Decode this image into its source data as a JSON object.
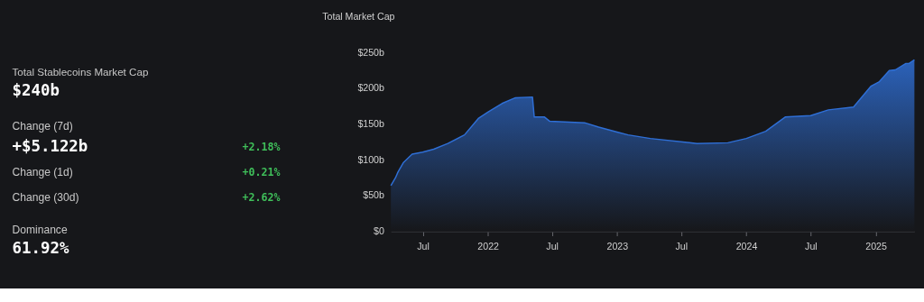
{
  "chart_data": [
    {
      "type": "other",
      "title": "Total Stablecoins Market Cap",
      "annotations": [
        "$240b",
        "Change (7d)",
        "+$5.122b",
        "+2.18%",
        "Change (1d)",
        "+0.21%",
        "Change (30d)",
        "+2.62%",
        "Dominance",
        "61.92%"
      ]
    },
    {
      "type": "area",
      "title": "Total Market Cap",
      "x": [
        "2021-04-02",
        "2021-04-15",
        "2021-04-22",
        "2021-05-07",
        "2021-06-01",
        "2021-07-01",
        "2021-08-01",
        "2021-09-10",
        "2021-10-27",
        "2021-12-05",
        "2022-01-01",
        "2022-02-10",
        "2022-03-20",
        "2022-05-07",
        "2022-05-12",
        "2022-06-10",
        "2022-06-25",
        "2022-10-01",
        "2022-11-10",
        "2023-01-01",
        "2023-02-01",
        "2023-04-05",
        "2023-08-15",
        "2023-11-10",
        "2024-01-01",
        "2024-02-25",
        "2024-04-20",
        "2024-07-01",
        "2024-08-20",
        "2024-10-30",
        "2024-12-18",
        "2025-01-10",
        "2025-02-08",
        "2025-02-25",
        "2025-03-27",
        "2025-04-05",
        "2025-04-20"
      ],
      "series": [
        {
          "color": "#2f6fd6",
          "values": [
            64,
            75,
            83,
            96,
            108,
            111,
            115,
            123,
            135,
            158,
            167,
            179,
            187,
            188,
            160,
            160,
            154,
            152,
            146,
            139,
            135,
            130,
            123,
            124,
            130,
            140,
            160,
            162,
            170,
            174,
            203,
            209,
            225,
            226,
            235,
            235,
            240
          ]
        }
      ],
      "xlim": [
        "2021-04-02",
        "2025-04-20"
      ],
      "xticks": [
        {
          "value": "2021-07-01",
          "label": "Jul"
        },
        {
          "value": "2022-01-01",
          "label": "2022"
        },
        {
          "value": "2022-07-01",
          "label": "Jul"
        },
        {
          "value": "2023-01-01",
          "label": "2023"
        },
        {
          "value": "2023-07-01",
          "label": "Jul"
        },
        {
          "value": "2024-01-01",
          "label": "2024"
        },
        {
          "value": "2024-07-01",
          "label": "Jul"
        },
        {
          "value": "2025-01-01",
          "label": "2025"
        }
      ],
      "ylim": [
        0,
        250
      ],
      "yticks": [
        {
          "value": 0,
          "label": "$0"
        },
        {
          "value": 50,
          "label": "$50b"
        },
        {
          "value": 100,
          "label": "$100b"
        },
        {
          "value": 150,
          "label": "$150b"
        },
        {
          "value": 200,
          "label": "$200b"
        },
        {
          "value": 250,
          "label": "$250b"
        }
      ],
      "grid": false
    }
  ]
}
